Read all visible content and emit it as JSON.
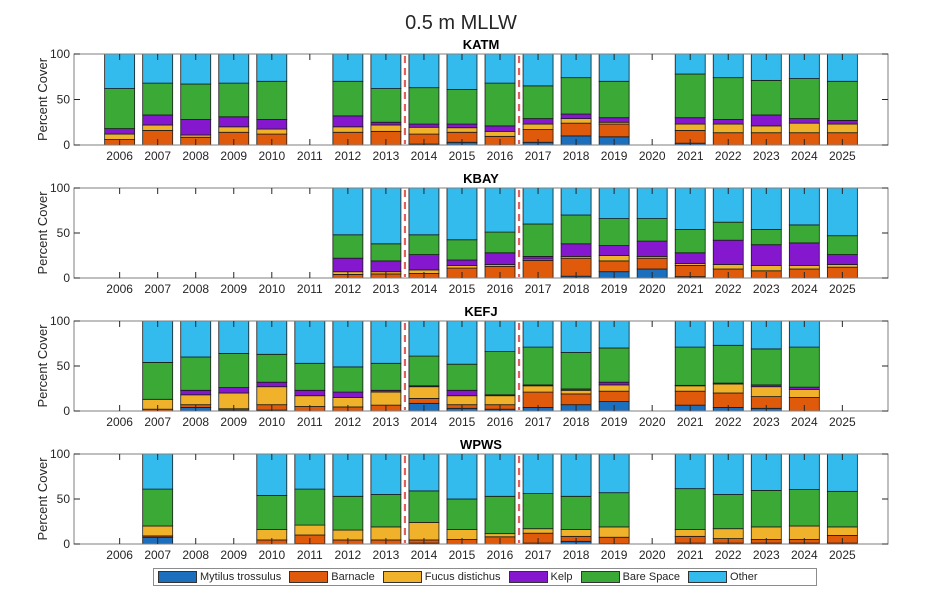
{
  "chart_data": {
    "type": "bar",
    "stacked": true,
    "title": "0.5 m MLLW",
    "ylabel": "Percent Cover",
    "xlabel": "",
    "ylim": [
      0,
      100
    ],
    "yticks": [
      0,
      50,
      100
    ],
    "categories": [
      "2006",
      "2007",
      "2008",
      "2009",
      "2010",
      "2011",
      "2012",
      "2013",
      "2014",
      "2015",
      "2016",
      "2017",
      "2018",
      "2019",
      "2020",
      "2021",
      "2022",
      "2023",
      "2024",
      "2025"
    ],
    "series_names": [
      "Mytilus trossulus",
      "Barnacle",
      "Fucus distichus",
      "Kelp",
      "Bare Space",
      "Other"
    ],
    "series_colors": [
      "#1b6fbd",
      "#e05a0c",
      "#f0b22a",
      "#8517cf",
      "#3aa936",
      "#33bbee"
    ],
    "reference_lines": {
      "years": [
        2013.5,
        2016.5
      ],
      "color": "#e06060",
      "style": "dashed"
    },
    "legend_position": "bottom",
    "panels": [
      {
        "title": "KATM",
        "data": {
          "2006": [
            0,
            6,
            6,
            6,
            44,
            38
          ],
          "2007": [
            0,
            16,
            6,
            11,
            35,
            32
          ],
          "2008": [
            0,
            8.5,
            2.5,
            17,
            39,
            33
          ],
          "2009": [
            0,
            14,
            6,
            11,
            37,
            32
          ],
          "2010": [
            0,
            12,
            5.5,
            10.5,
            42,
            30
          ],
          "2012": [
            0,
            14,
            6,
            12,
            38,
            30
          ],
          "2013": [
            0,
            15,
            7,
            3,
            37,
            38
          ],
          "2014": [
            1,
            11,
            7.5,
            3.5,
            40,
            37
          ],
          "2015": [
            3,
            11,
            5,
            4,
            38,
            39
          ],
          "2016": [
            0,
            9.5,
            5.5,
            6,
            47,
            32
          ],
          "2017": [
            3,
            14,
            6,
            6,
            36,
            35
          ],
          "2018": [
            10,
            14,
            5,
            5,
            40,
            26
          ],
          "2019": [
            9,
            14,
            2,
            5,
            40,
            30
          ],
          "2021": [
            2,
            14,
            7,
            7,
            48,
            22
          ],
          "2022": [
            0,
            13.5,
            9.5,
            5,
            46,
            26
          ],
          "2023": [
            0,
            13.5,
            7.5,
            12,
            38,
            29
          ],
          "2024": [
            0,
            13.5,
            10.5,
            5,
            44,
            27
          ],
          "2025": [
            0,
            13.5,
            9.5,
            4,
            43,
            30
          ]
        }
      },
      {
        "title": "KBAY",
        "data": {
          "2012": [
            0,
            4,
            3,
            15,
            26,
            52
          ],
          "2013": [
            0,
            4.5,
            2.5,
            12,
            19,
            62
          ],
          "2014": [
            0,
            5,
            4,
            17,
            22,
            52
          ],
          "2015": [
            0,
            11,
            3,
            6,
            22.5,
            57.5
          ],
          "2016": [
            0,
            13,
            2,
            13,
            23,
            49
          ],
          "2017": [
            0,
            19.5,
            1.5,
            3,
            36,
            40
          ],
          "2018": [
            2,
            20,
            2,
            14,
            32,
            30
          ],
          "2019": [
            7,
            12,
            6,
            11,
            30,
            34
          ],
          "2020": [
            10,
            12,
            2,
            17,
            25,
            34
          ],
          "2021": [
            1.5,
            12.5,
            2,
            12,
            26,
            46
          ],
          "2022": [
            0,
            10,
            5,
            27,
            20,
            38
          ],
          "2023": [
            0,
            8,
            6,
            23,
            17,
            46
          ],
          "2024": [
            0,
            10,
            4,
            25,
            20,
            41
          ],
          "2025": [
            0,
            12,
            3,
            11,
            21,
            53
          ]
        }
      },
      {
        "title": "KEFJ",
        "data": {
          "2007": [
            0,
            2,
            11,
            0,
            41,
            46
          ],
          "2008": [
            4,
            3,
            11,
            5,
            37,
            40
          ],
          "2009": [
            1,
            1.5,
            17.5,
            6,
            38,
            36
          ],
          "2010": [
            1,
            6,
            20,
            5,
            31,
            37
          ],
          "2011": [
            0,
            5,
            12,
            6,
            30,
            47
          ],
          "2012": [
            0,
            4.5,
            10.5,
            6,
            28,
            51
          ],
          "2013": [
            0,
            6.5,
            14.5,
            2,
            30,
            47
          ],
          "2014": [
            8.5,
            5.5,
            13,
            1,
            33,
            39
          ],
          "2015": [
            3,
            4,
            10,
            6,
            29,
            48
          ],
          "2016": [
            2,
            5,
            10,
            1,
            48,
            34
          ],
          "2017": [
            4,
            17,
            7,
            1,
            42,
            29
          ],
          "2018": [
            7,
            12,
            4,
            1.5,
            40.5,
            35
          ],
          "2019": [
            10.5,
            11.5,
            7,
            3,
            38,
            30
          ],
          "2021": [
            6.5,
            15.5,
            6,
            0.5,
            42.5,
            29
          ],
          "2022": [
            4,
            16,
            10,
            1,
            42,
            27
          ],
          "2023": [
            3,
            13,
            11,
            2,
            40,
            31
          ],
          "2024": [
            0,
            15,
            9,
            2.5,
            44.5,
            29
          ]
        }
      },
      {
        "title": "WPWS",
        "data": {
          "2007": [
            7.5,
            1.5,
            11,
            0,
            41,
            39
          ],
          "2010": [
            0,
            4.5,
            11.5,
            0,
            38,
            46
          ],
          "2011": [
            0.5,
            9.5,
            11,
            0,
            40,
            39
          ],
          "2012": [
            0,
            4.5,
            11,
            0,
            37.5,
            47
          ],
          "2013": [
            0,
            4.5,
            14.5,
            0,
            36,
            45
          ],
          "2014": [
            1,
            3.5,
            19.5,
            0,
            35,
            41
          ],
          "2015": [
            0,
            5,
            11,
            0,
            34,
            50
          ],
          "2016": [
            0,
            8,
            3.5,
            0,
            41.5,
            47
          ],
          "2017": [
            1,
            11,
            5,
            0,
            39,
            44
          ],
          "2018": [
            3,
            5.5,
            7.5,
            0,
            37,
            47
          ],
          "2019": [
            0.5,
            7,
            11.5,
            0,
            38,
            43
          ],
          "2021": [
            1,
            7.5,
            7.5,
            0,
            45.5,
            38.5
          ],
          "2022": [
            1,
            5,
            11,
            0,
            38,
            45
          ],
          "2023": [
            1,
            4,
            14,
            0,
            40.5,
            40.5
          ],
          "2024": [
            1,
            4,
            15,
            0,
            40.5,
            39.5
          ],
          "2025": [
            1,
            8.5,
            9.5,
            0,
            39.5,
            41.5
          ]
        }
      }
    ]
  },
  "legend": {
    "items": [
      {
        "label": "Mytilus trossulus",
        "color": "#1b6fbd"
      },
      {
        "label": "Barnacle",
        "color": "#e05a0c"
      },
      {
        "label": "Fucus distichus",
        "color": "#f0b22a"
      },
      {
        "label": "Kelp",
        "color": "#8517cf"
      },
      {
        "label": "Bare Space",
        "color": "#3aa936"
      },
      {
        "label": "Other",
        "color": "#33bbee"
      }
    ]
  }
}
